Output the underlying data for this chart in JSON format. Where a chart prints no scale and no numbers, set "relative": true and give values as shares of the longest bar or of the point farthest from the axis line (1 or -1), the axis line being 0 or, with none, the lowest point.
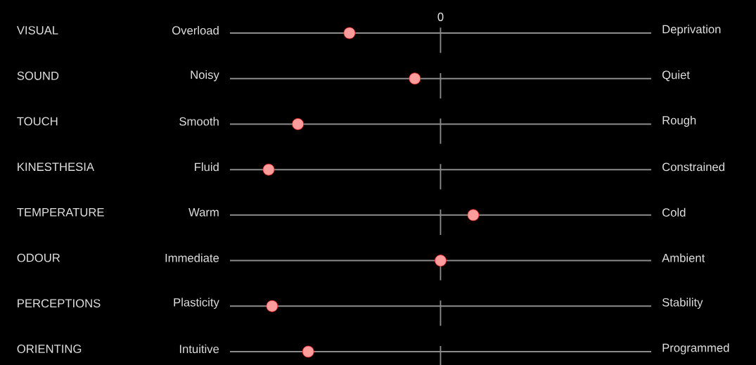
{
  "chart_data": {
    "type": "scatter",
    "orientation": "horizontal",
    "relative": true,
    "categories": [
      "VISUAL",
      "SOUND",
      "TOUCH",
      "KINESTHESIA",
      "TEMPERATURE",
      "ODOUR",
      "PERCEPTIONS",
      "ORIENTING"
    ],
    "series": [
      {
        "color": "#ff9c9c",
        "values": [
          -0.53,
          -0.15,
          -0.83,
          -1,
          0.19,
          0,
          -0.98,
          -0.77
        ]
      }
    ],
    "marker": "circle",
    "grid": "y",
    "legend": false,
    "tick_labels": "y",
    "ref_lines": [
      {
        "axis": "x",
        "value": 0,
        "label": "0",
        "line_style": "dashed"
      }
    ],
    "annotations": [
      "Overload",
      "Deprivation",
      "Noisy",
      "Quiet",
      "Smooth",
      "Rough",
      "Fluid",
      "Constrained",
      "Warm",
      "Cold",
      "Immediate",
      "Ambient",
      "Plasticity",
      "Stability",
      "Intuitive",
      "Programmed"
    ]
  }
}
